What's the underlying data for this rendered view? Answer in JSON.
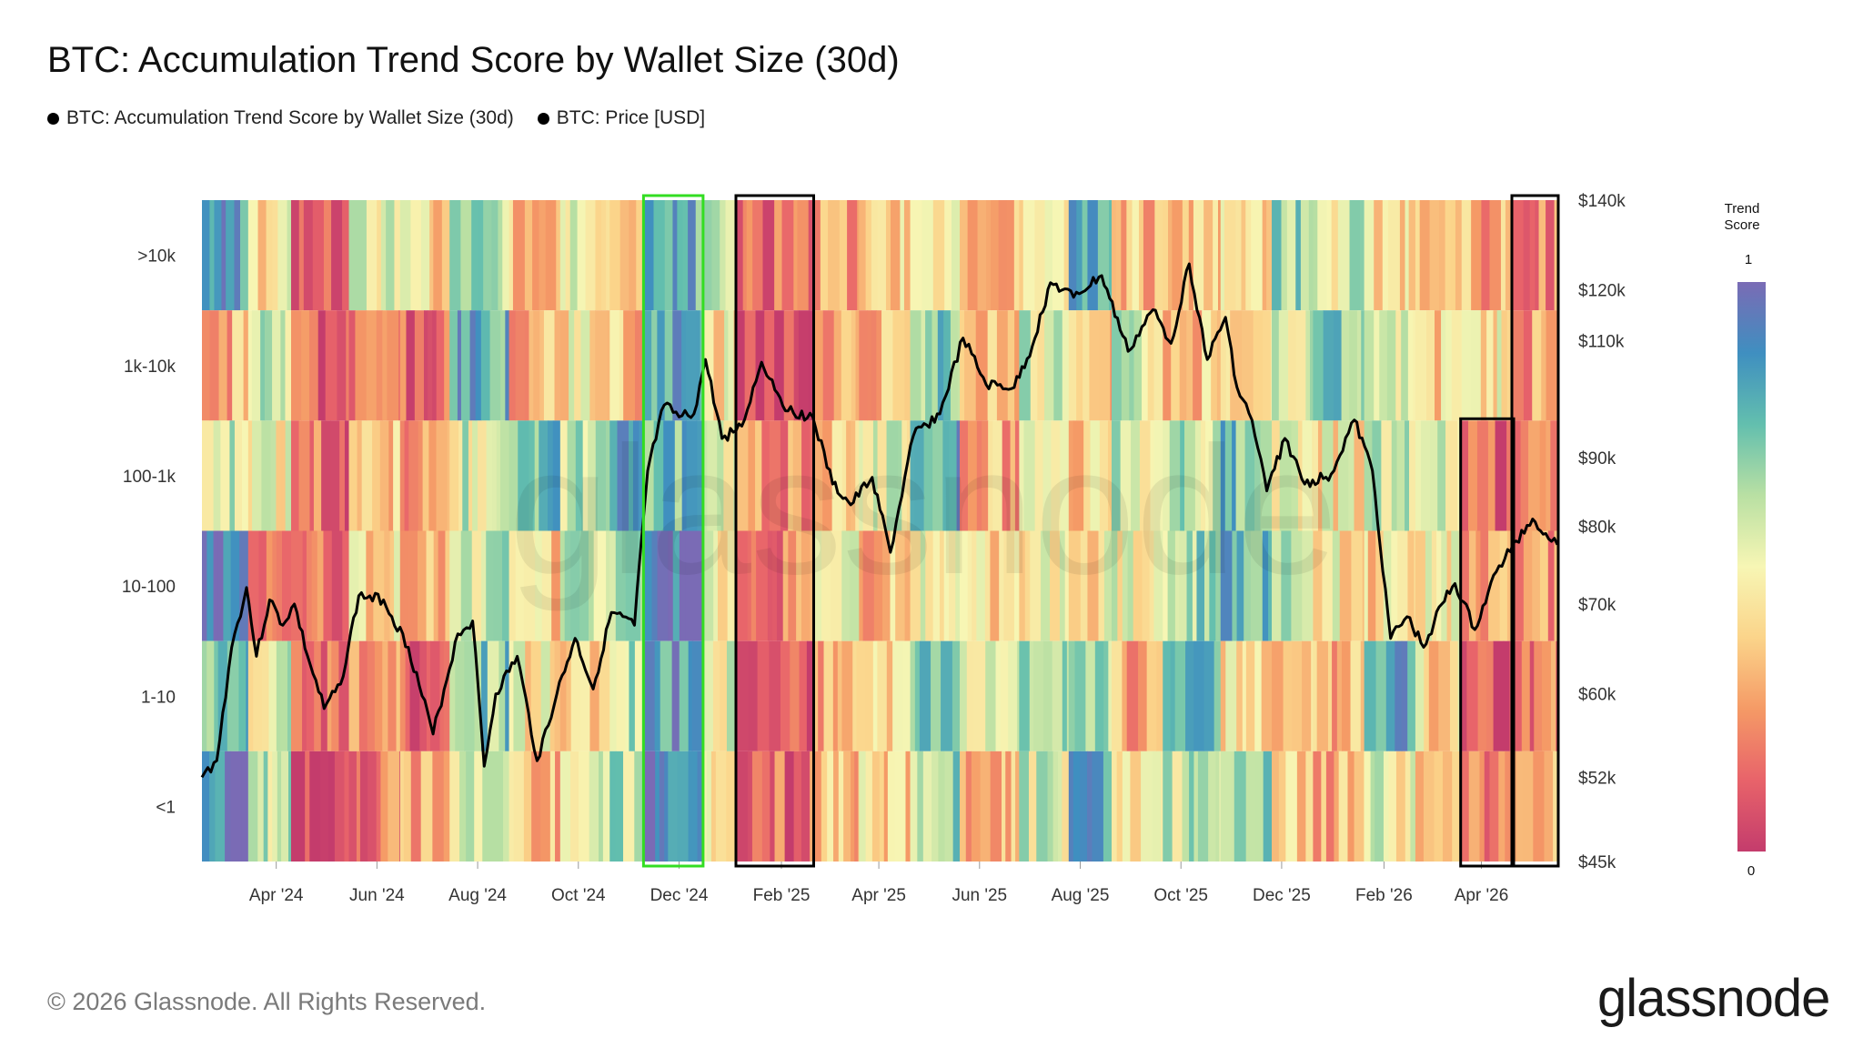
{
  "chart_data": {
    "type": "heatmap",
    "title": "BTC: Accumulation Trend Score by Wallet Size (30d)",
    "legend": [
      {
        "label": "BTC: Accumulation Trend Score by Wallet Size (30d)",
        "color": "#000000"
      },
      {
        "label": "BTC: Price [USD]",
        "color": "#000000"
      }
    ],
    "rows": [
      ">10k",
      "1k-10k",
      "100-1k",
      "10-100",
      "1-10",
      "<1"
    ],
    "x_range": [
      "2024-02-16",
      "2026-05-17"
    ],
    "x_ticks": [
      {
        "label": "Apr '24",
        "date": "2024-04-01"
      },
      {
        "label": "Jun '24",
        "date": "2024-06-01"
      },
      {
        "label": "Aug '24",
        "date": "2024-08-01"
      },
      {
        "label": "Oct '24",
        "date": "2024-10-01"
      },
      {
        "label": "Dec '24",
        "date": "2024-12-01"
      },
      {
        "label": "Feb '25",
        "date": "2025-02-01"
      },
      {
        "label": "Apr '25",
        "date": "2025-04-01"
      },
      {
        "label": "Jun '25",
        "date": "2025-06-01"
      },
      {
        "label": "Aug '25",
        "date": "2025-08-01"
      },
      {
        "label": "Oct '25",
        "date": "2025-10-01"
      },
      {
        "label": "Dec '25",
        "date": "2025-12-01"
      },
      {
        "label": "Feb '26",
        "date": "2026-02-01"
      },
      {
        "label": "Apr '26",
        "date": "2026-04-01"
      }
    ],
    "y_right": {
      "scale": "log",
      "range": [
        45000,
        140000
      ],
      "ticks": [
        {
          "label": "$140k",
          "value": 140000
        },
        {
          "label": "$120k",
          "value": 120000
        },
        {
          "label": "$110k",
          "value": 110000
        },
        {
          "label": "$90k",
          "value": 90000
        },
        {
          "label": "$80k",
          "value": 80000
        },
        {
          "label": "$70k",
          "value": 70000
        },
        {
          "label": "$60k",
          "value": 60000
        },
        {
          "label": "$52k",
          "value": 52000
        },
        {
          "label": "$45k",
          "value": 45000
        }
      ]
    },
    "colorbar": {
      "title_line1": "Trend",
      "title_line2": "Score",
      "max_label": "1",
      "min_label": "0",
      "stops": [
        "#c43c6c",
        "#e8636a",
        "#f59a66",
        "#fbd48a",
        "#f7f6b4",
        "#b9e0a3",
        "#63bfae",
        "#3f8fc0",
        "#7a6bb5"
      ]
    },
    "segments": [
      {
        "start": "2024-02-16",
        "end": "2024-03-15",
        "scores": [
          0.85,
          0.3,
          0.55,
          0.9,
          0.75,
          0.9
        ]
      },
      {
        "start": "2024-03-15",
        "end": "2024-04-10",
        "scores": [
          0.45,
          0.55,
          0.5,
          0.25,
          0.55,
          0.6
        ]
      },
      {
        "start": "2024-04-10",
        "end": "2024-05-15",
        "scores": [
          0.05,
          0.1,
          0.15,
          0.15,
          0.2,
          0.08
        ]
      },
      {
        "start": "2024-05-15",
        "end": "2024-06-15",
        "scores": [
          0.5,
          0.2,
          0.35,
          0.4,
          0.3,
          0.2
        ]
      },
      {
        "start": "2024-06-15",
        "end": "2024-07-15",
        "scores": [
          0.4,
          0.12,
          0.25,
          0.3,
          0.15,
          0.3
        ]
      },
      {
        "start": "2024-07-15",
        "end": "2024-08-20",
        "scores": [
          0.65,
          0.8,
          0.55,
          0.6,
          0.7,
          0.55
        ]
      },
      {
        "start": "2024-08-20",
        "end": "2024-09-20",
        "scores": [
          0.35,
          0.3,
          0.75,
          0.4,
          0.45,
          0.35
        ]
      },
      {
        "start": "2024-09-20",
        "end": "2024-10-20",
        "scores": [
          0.5,
          0.45,
          0.6,
          0.55,
          0.4,
          0.55
        ]
      },
      {
        "start": "2024-10-20",
        "end": "2024-11-10",
        "scores": [
          0.4,
          0.35,
          0.85,
          0.7,
          0.6,
          0.6
        ]
      },
      {
        "start": "2024-11-10",
        "end": "2024-12-15",
        "scores": [
          0.8,
          0.8,
          0.75,
          0.95,
          0.85,
          0.95
        ]
      },
      {
        "start": "2024-12-15",
        "end": "2025-01-05",
        "scores": [
          0.55,
          0.45,
          0.5,
          0.45,
          0.55,
          0.5
        ]
      },
      {
        "start": "2025-01-05",
        "end": "2025-02-20",
        "scores": [
          0.15,
          0.08,
          0.25,
          0.2,
          0.12,
          0.15
        ]
      },
      {
        "start": "2025-02-20",
        "end": "2025-03-20",
        "scores": [
          0.3,
          0.25,
          0.4,
          0.45,
          0.3,
          0.35
        ]
      },
      {
        "start": "2025-03-20",
        "end": "2025-04-20",
        "scores": [
          0.4,
          0.3,
          0.55,
          0.35,
          0.45,
          0.4
        ]
      },
      {
        "start": "2025-04-20",
        "end": "2025-05-20",
        "scores": [
          0.55,
          0.7,
          0.8,
          0.45,
          0.75,
          0.65
        ]
      },
      {
        "start": "2025-05-20",
        "end": "2025-06-25",
        "scores": [
          0.3,
          0.35,
          0.3,
          0.4,
          0.6,
          0.35
        ]
      },
      {
        "start": "2025-06-25",
        "end": "2025-07-25",
        "scores": [
          0.5,
          0.55,
          0.45,
          0.5,
          0.65,
          0.55
        ]
      },
      {
        "start": "2025-07-25",
        "end": "2025-08-20",
        "scores": [
          0.85,
          0.35,
          0.4,
          0.45,
          0.6,
          0.8
        ]
      },
      {
        "start": "2025-08-20",
        "end": "2025-09-20",
        "scores": [
          0.35,
          0.55,
          0.55,
          0.5,
          0.3,
          0.4
        ]
      },
      {
        "start": "2025-09-20",
        "end": "2025-10-25",
        "scores": [
          0.4,
          0.35,
          0.6,
          0.65,
          0.75,
          0.6
        ]
      },
      {
        "start": "2025-10-25",
        "end": "2025-11-25",
        "scores": [
          0.45,
          0.4,
          0.75,
          0.8,
          0.45,
          0.65
        ]
      },
      {
        "start": "2025-11-25",
        "end": "2025-12-20",
        "scores": [
          0.7,
          0.55,
          0.5,
          0.55,
          0.35,
          0.4
        ]
      },
      {
        "start": "2025-12-20",
        "end": "2026-01-20",
        "scores": [
          0.55,
          0.7,
          0.45,
          0.45,
          0.3,
          0.3
        ]
      },
      {
        "start": "2026-01-20",
        "end": "2026-02-20",
        "scores": [
          0.45,
          0.5,
          0.55,
          0.4,
          0.8,
          0.5
        ]
      },
      {
        "start": "2026-02-20",
        "end": "2026-03-20",
        "scores": [
          0.35,
          0.4,
          0.5,
          0.45,
          0.4,
          0.35
        ]
      },
      {
        "start": "2026-03-20",
        "end": "2026-04-20",
        "scores": [
          0.3,
          0.45,
          0.1,
          0.3,
          0.1,
          0.15
        ]
      },
      {
        "start": "2026-04-20",
        "end": "2026-05-17",
        "scores": [
          0.2,
          0.25,
          0.15,
          0.25,
          0.2,
          0.3
        ]
      }
    ],
    "price": [
      {
        "date": "2024-02-16",
        "value": 52000
      },
      {
        "date": "2024-02-25",
        "value": 53500
      },
      {
        "date": "2024-03-05",
        "value": 65000
      },
      {
        "date": "2024-03-14",
        "value": 72000
      },
      {
        "date": "2024-03-20",
        "value": 64000
      },
      {
        "date": "2024-03-28",
        "value": 70500
      },
      {
        "date": "2024-04-05",
        "value": 67500
      },
      {
        "date": "2024-04-12",
        "value": 70000
      },
      {
        "date": "2024-04-20",
        "value": 64000
      },
      {
        "date": "2024-04-30",
        "value": 58500
      },
      {
        "date": "2024-05-10",
        "value": 61000
      },
      {
        "date": "2024-05-21",
        "value": 71000
      },
      {
        "date": "2024-06-05",
        "value": 70500
      },
      {
        "date": "2024-06-20",
        "value": 65000
      },
      {
        "date": "2024-07-05",
        "value": 56000
      },
      {
        "date": "2024-07-20",
        "value": 66500
      },
      {
        "date": "2024-07-29",
        "value": 68000
      },
      {
        "date": "2024-08-05",
        "value": 53000
      },
      {
        "date": "2024-08-12",
        "value": 60000
      },
      {
        "date": "2024-08-25",
        "value": 64000
      },
      {
        "date": "2024-09-06",
        "value": 53500
      },
      {
        "date": "2024-09-18",
        "value": 60000
      },
      {
        "date": "2024-09-29",
        "value": 66000
      },
      {
        "date": "2024-10-10",
        "value": 60500
      },
      {
        "date": "2024-10-21",
        "value": 69000
      },
      {
        "date": "2024-11-04",
        "value": 67500
      },
      {
        "date": "2024-11-12",
        "value": 88000
      },
      {
        "date": "2024-11-22",
        "value": 98500
      },
      {
        "date": "2024-12-01",
        "value": 96500
      },
      {
        "date": "2024-12-10",
        "value": 97000
      },
      {
        "date": "2024-12-17",
        "value": 106500
      },
      {
        "date": "2024-12-27",
        "value": 93000
      },
      {
        "date": "2025-01-08",
        "value": 95000
      },
      {
        "date": "2025-01-20",
        "value": 106000
      },
      {
        "date": "2025-02-05",
        "value": 97500
      },
      {
        "date": "2025-02-20",
        "value": 96500
      },
      {
        "date": "2025-03-04",
        "value": 86000
      },
      {
        "date": "2025-03-15",
        "value": 83000
      },
      {
        "date": "2025-03-28",
        "value": 87000
      },
      {
        "date": "2025-04-08",
        "value": 76500
      },
      {
        "date": "2025-04-22",
        "value": 93500
      },
      {
        "date": "2025-05-08",
        "value": 97000
      },
      {
        "date": "2025-05-22",
        "value": 110500
      },
      {
        "date": "2025-06-05",
        "value": 102000
      },
      {
        "date": "2025-06-22",
        "value": 101500
      },
      {
        "date": "2025-07-03",
        "value": 109000
      },
      {
        "date": "2025-07-14",
        "value": 121500
      },
      {
        "date": "2025-07-28",
        "value": 118500
      },
      {
        "date": "2025-08-14",
        "value": 123000
      },
      {
        "date": "2025-08-30",
        "value": 108000
      },
      {
        "date": "2025-09-14",
        "value": 116000
      },
      {
        "date": "2025-09-25",
        "value": 109500
      },
      {
        "date": "2025-10-06",
        "value": 125500
      },
      {
        "date": "2025-10-17",
        "value": 106500
      },
      {
        "date": "2025-10-28",
        "value": 114500
      },
      {
        "date": "2025-11-04",
        "value": 101500
      },
      {
        "date": "2025-11-13",
        "value": 96000
      },
      {
        "date": "2025-11-22",
        "value": 85000
      },
      {
        "date": "2025-12-03",
        "value": 93000
      },
      {
        "date": "2025-12-15",
        "value": 86000
      },
      {
        "date": "2025-12-31",
        "value": 87500
      },
      {
        "date": "2026-01-14",
        "value": 96000
      },
      {
        "date": "2026-01-25",
        "value": 88000
      },
      {
        "date": "2026-02-05",
        "value": 66000
      },
      {
        "date": "2026-02-15",
        "value": 68500
      },
      {
        "date": "2026-02-25",
        "value": 65000
      },
      {
        "date": "2026-03-08",
        "value": 70000
      },
      {
        "date": "2026-03-16",
        "value": 72500
      },
      {
        "date": "2026-03-28",
        "value": 67000
      },
      {
        "date": "2026-04-10",
        "value": 74000
      },
      {
        "date": "2026-04-22",
        "value": 78000
      },
      {
        "date": "2026-05-02",
        "value": 81000
      },
      {
        "date": "2026-05-10",
        "value": 79000
      },
      {
        "date": "2026-05-17",
        "value": 77500
      }
    ],
    "highlight_boxes": [
      {
        "start": "2024-11-10",
        "end": "2024-12-15",
        "rows": [
          ">10k",
          "<1"
        ],
        "color": "#33dd22"
      },
      {
        "start": "2025-01-05",
        "end": "2025-02-20",
        "rows": [
          ">10k",
          "<1"
        ],
        "color": "#000000"
      },
      {
        "start": "2026-03-20",
        "end": "2026-04-20",
        "rows": [
          "100-1k",
          "<1"
        ],
        "color": "#000000"
      },
      {
        "start": "2026-04-20",
        "end": "2026-05-17",
        "rows": [
          ">10k",
          "<1"
        ],
        "color": "#000000"
      }
    ],
    "watermark": "glassnode"
  },
  "footer": {
    "copyright": "© 2026 Glassnode. All Rights Reserved.",
    "brand": "glassnode"
  }
}
